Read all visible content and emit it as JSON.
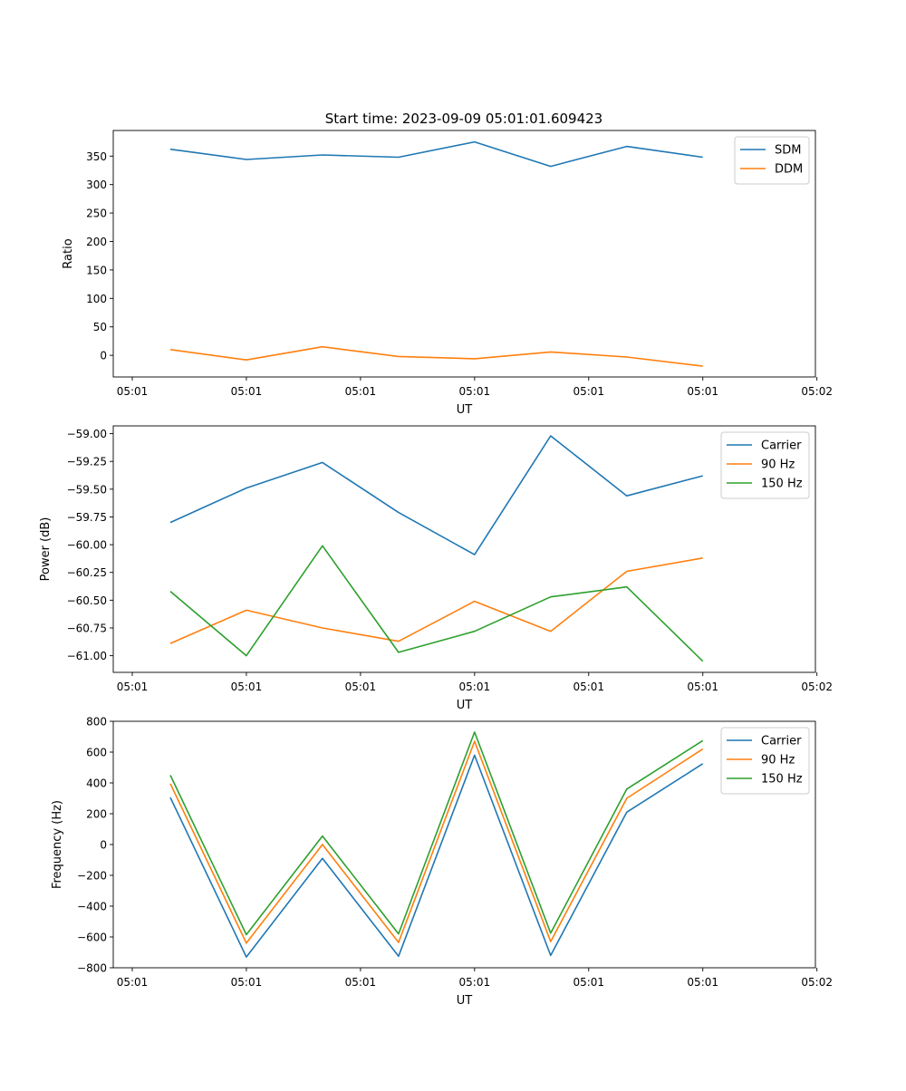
{
  "figure": {
    "suptitle": "Start time: 2023-09-09 05:01:01.609423"
  },
  "chart_data": [
    {
      "type": "line",
      "title": "Start time: 2023-09-09 05:01:01.609423",
      "xlabel": "UT",
      "ylabel": "Ratio",
      "x": [
        1,
        2,
        3,
        4,
        5,
        6,
        7,
        8
      ],
      "xlim": [
        0.25,
        9.48
      ],
      "ylim": [
        -38,
        395
      ],
      "xticks": [
        0.5,
        2,
        3.5,
        5,
        6.5,
        8,
        9.5
      ],
      "xtick_labels": [
        "05:01",
        "05:01",
        "05:01",
        "05:01",
        "05:01",
        "05:01",
        "05:02"
      ],
      "yticks": [
        0,
        50,
        100,
        150,
        200,
        250,
        300,
        350
      ],
      "ytick_labels": [
        "0",
        "50",
        "100",
        "150",
        "200",
        "250",
        "300",
        "350"
      ],
      "legend_position": "top-right",
      "series": [
        {
          "name": "SDM",
          "color": "#1f77b4",
          "values": [
            362,
            344,
            352,
            348,
            375,
            332,
            367,
            348
          ]
        },
        {
          "name": "DDM",
          "color": "#ff7f0e",
          "values": [
            10,
            -8,
            15,
            -2,
            -6,
            6,
            -3,
            -19
          ]
        }
      ]
    },
    {
      "type": "line",
      "title": "",
      "xlabel": "UT",
      "ylabel": "Power (dB)",
      "x": [
        1,
        2,
        3,
        4,
        5,
        6,
        7,
        8
      ],
      "xlim": [
        0.25,
        9.48
      ],
      "ylim": [
        -61.15,
        -58.93
      ],
      "xticks": [
        0.5,
        2,
        3.5,
        5,
        6.5,
        8,
        9.5
      ],
      "xtick_labels": [
        "05:01",
        "05:01",
        "05:01",
        "05:01",
        "05:01",
        "05:01",
        "05:02"
      ],
      "yticks": [
        -61.0,
        -60.75,
        -60.5,
        -60.25,
        -60.0,
        -59.75,
        -59.5,
        -59.25,
        -59.0
      ],
      "ytick_labels": [
        "−61.00",
        "−60.75",
        "−60.50",
        "−60.25",
        "−60.00",
        "−59.75",
        "−59.50",
        "−59.25",
        "−59.00"
      ],
      "legend_position": "top-right",
      "series": [
        {
          "name": "Carrier",
          "color": "#1f77b4",
          "values": [
            -59.8,
            -59.49,
            -59.26,
            -59.71,
            -60.09,
            -59.02,
            -59.56,
            -59.38
          ]
        },
        {
          "name": "90 Hz",
          "color": "#ff7f0e",
          "values": [
            -60.89,
            -60.59,
            -60.75,
            -60.87,
            -60.51,
            -60.78,
            -60.24,
            -60.12
          ]
        },
        {
          "name": "150 Hz",
          "color": "#2ca02c",
          "values": [
            -60.42,
            -61.0,
            -60.01,
            -60.97,
            -60.78,
            -60.47,
            -60.38,
            -61.05
          ]
        }
      ]
    },
    {
      "type": "line",
      "title": "",
      "xlabel": "UT",
      "ylabel": "Frequency (Hz)",
      "x": [
        1,
        2,
        3,
        4,
        5,
        6,
        7,
        8
      ],
      "xlim": [
        0.25,
        9.48
      ],
      "ylim": [
        -800,
        800
      ],
      "xticks": [
        0.5,
        2,
        3.5,
        5,
        6.5,
        8,
        9.5
      ],
      "xtick_labels": [
        "05:01",
        "05:01",
        "05:01",
        "05:01",
        "05:01",
        "05:01",
        "05:02"
      ],
      "yticks": [
        -800,
        -600,
        -400,
        -200,
        0,
        200,
        400,
        600,
        800
      ],
      "ytick_labels": [
        "−800",
        "−600",
        "−400",
        "−200",
        "0",
        "200",
        "400",
        "600",
        "800"
      ],
      "legend_position": "top-right",
      "series": [
        {
          "name": "Carrier",
          "color": "#1f77b4",
          "values": [
            305,
            -730,
            -90,
            -725,
            580,
            -720,
            210,
            525
          ]
        },
        {
          "name": "90 Hz",
          "color": "#ff7f0e",
          "values": [
            395,
            -640,
            0,
            -635,
            670,
            -630,
            300,
            620
          ]
        },
        {
          "name": "150 Hz",
          "color": "#2ca02c",
          "values": [
            450,
            -585,
            55,
            -580,
            730,
            -575,
            360,
            675
          ]
        }
      ]
    }
  ]
}
